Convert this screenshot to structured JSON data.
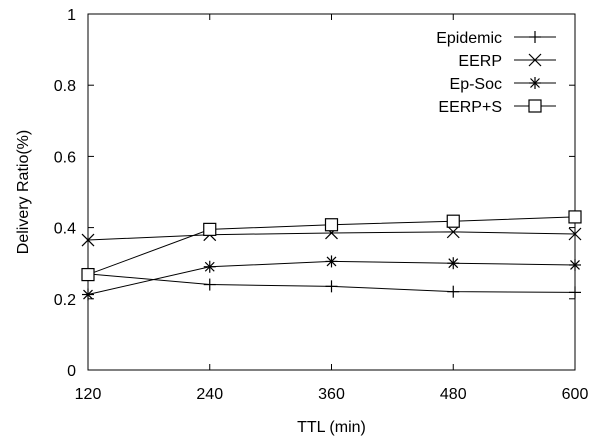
{
  "chart_data": {
    "type": "line",
    "title": "",
    "xlabel": "TTL (min)",
    "ylabel": "Delivery Ratio(%)",
    "x": [
      120,
      240,
      360,
      480,
      600
    ],
    "xlim": [
      120,
      600
    ],
    "ylim": [
      0,
      1
    ],
    "xticks": [
      "120",
      "240",
      "360",
      "480",
      "600"
    ],
    "yticks": [
      "0",
      "0.2",
      "0.4",
      "0.6",
      "0.8",
      "1"
    ],
    "grid": false,
    "legend_position": "top-right",
    "series": [
      {
        "name": "Epidemic",
        "marker": "plus",
        "values": [
          0.27,
          0.24,
          0.235,
          0.22,
          0.218
        ]
      },
      {
        "name": "EERP",
        "marker": "x",
        "values": [
          0.365,
          0.38,
          0.385,
          0.388,
          0.382
        ]
      },
      {
        "name": "Ep-Soc",
        "marker": "star",
        "values": [
          0.212,
          0.29,
          0.305,
          0.3,
          0.295
        ]
      },
      {
        "name": "EERP+S",
        "marker": "square",
        "values": [
          0.268,
          0.395,
          0.408,
          0.418,
          0.43
        ]
      }
    ]
  }
}
